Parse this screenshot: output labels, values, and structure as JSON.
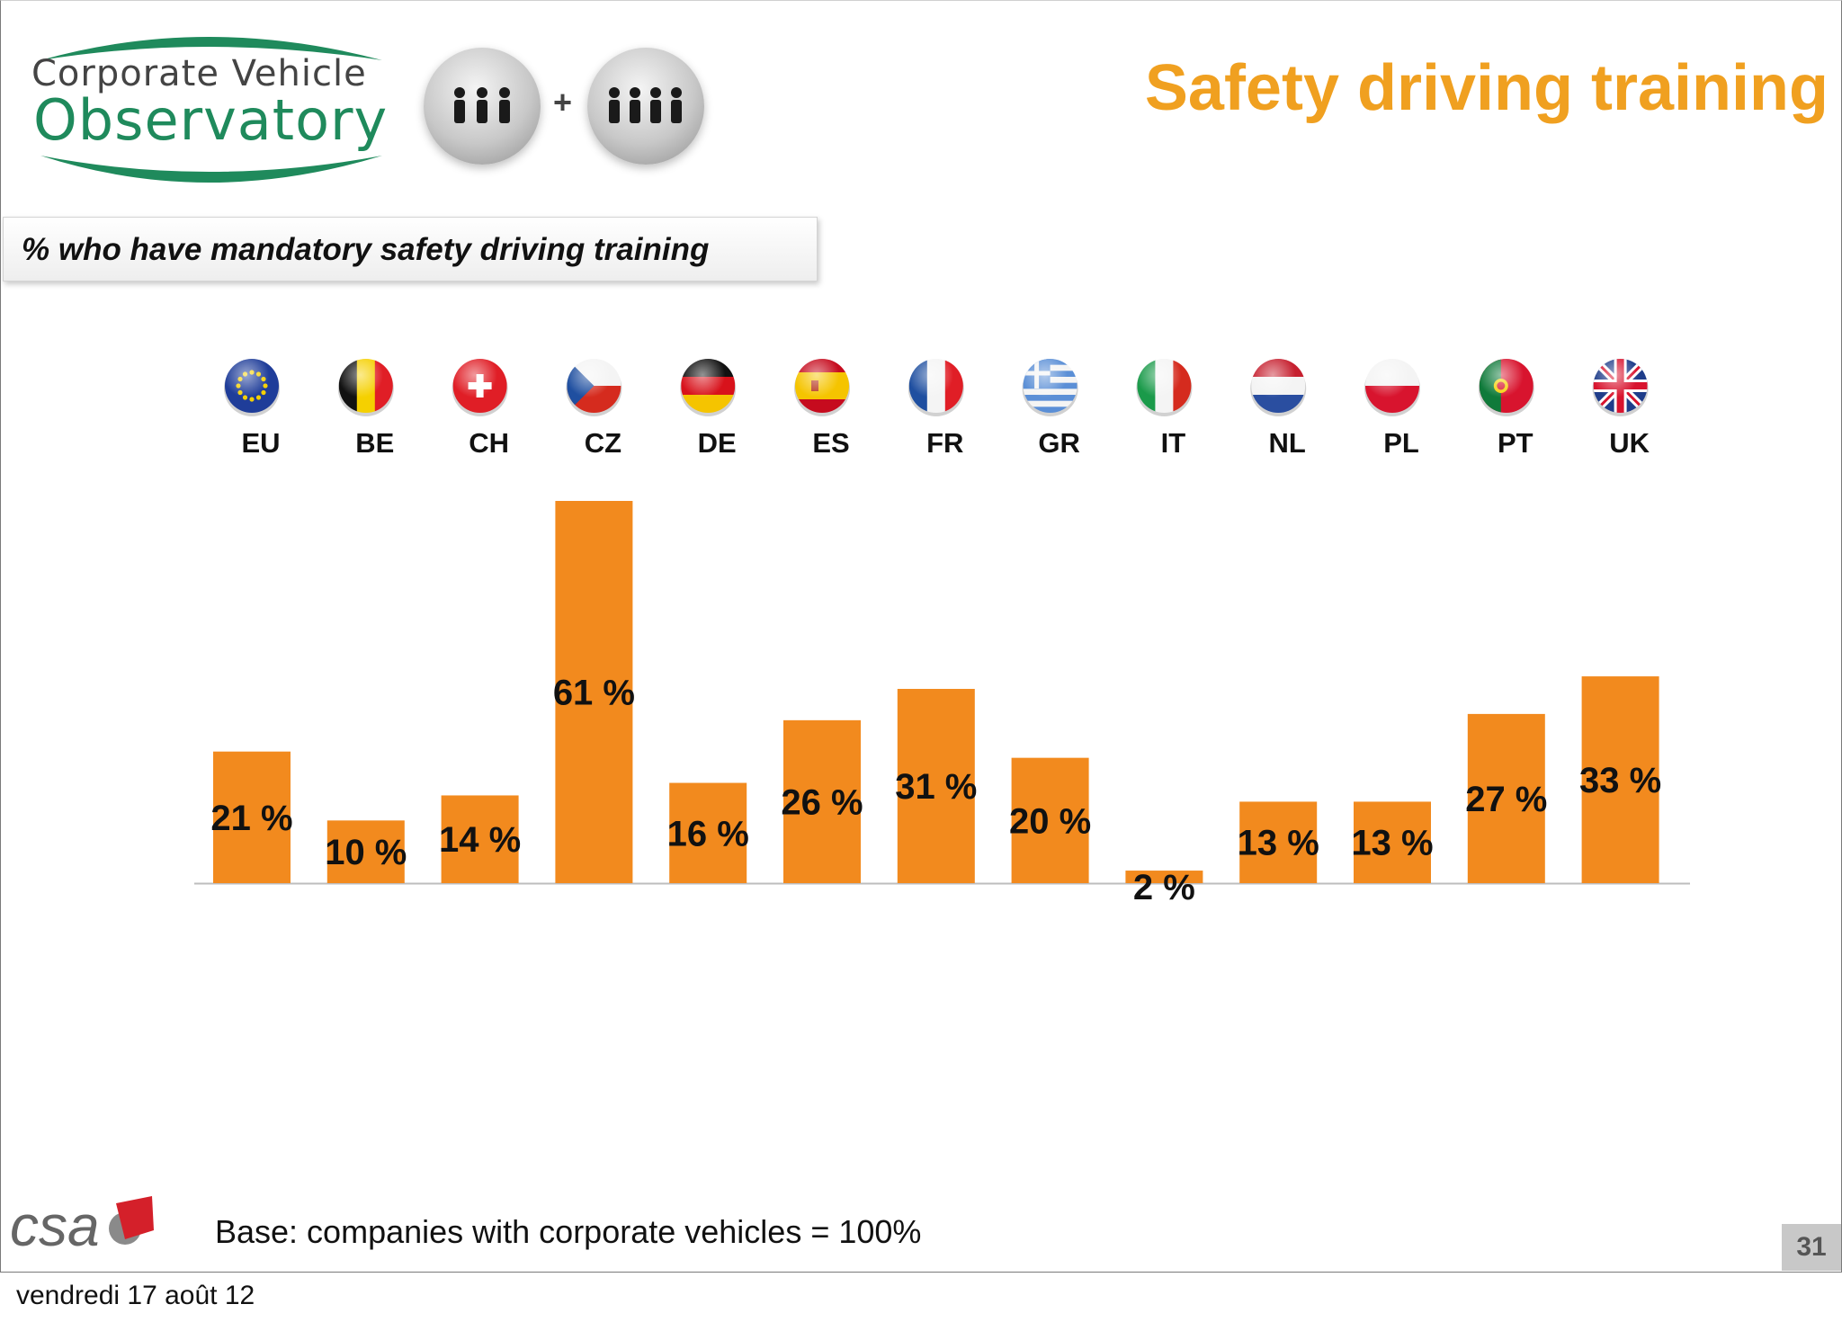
{
  "logo": {
    "line1": "Corporate Vehicle",
    "line2": "Observatory"
  },
  "title": "Safety driving training",
  "subtitle": "% who have mandatory safety driving training",
  "chart_data": {
    "type": "bar",
    "categories": [
      "EU",
      "BE",
      "CH",
      "CZ",
      "DE",
      "ES",
      "FR",
      "GR",
      "IT",
      "NL",
      "PL",
      "PT",
      "UK"
    ],
    "values": [
      21,
      10,
      14,
      61,
      16,
      26,
      31,
      20,
      2,
      13,
      13,
      27,
      33
    ],
    "data_labels": [
      "21 %",
      "10 %",
      "14 %",
      "61 %",
      "16 %",
      "26 %",
      "31 %",
      "20 %",
      "2 %",
      "13 %",
      "13 %",
      "27 %",
      "33 %"
    ],
    "ylim": [
      0,
      61
    ],
    "grid": false,
    "legend": "none",
    "bar_color": "#f28a1e",
    "flag_icons": [
      "eu-flag-icon",
      "be-flag-icon",
      "ch-flag-icon",
      "cz-flag-icon",
      "de-flag-icon",
      "es-flag-icon",
      "fr-flag-icon",
      "gr-flag-icon",
      "it-flag-icon",
      "nl-flag-icon",
      "pl-flag-icon",
      "pt-flag-icon",
      "uk-flag-icon"
    ]
  },
  "footer": {
    "brand": "csa",
    "note": "Base: companies with corporate vehicles = 100%",
    "page_number": "31",
    "date": "vendredi 17 août 12"
  },
  "colors": {
    "title": "#f0a020",
    "bar": "#f28a1e",
    "logo_green": "#1f8a5c"
  }
}
